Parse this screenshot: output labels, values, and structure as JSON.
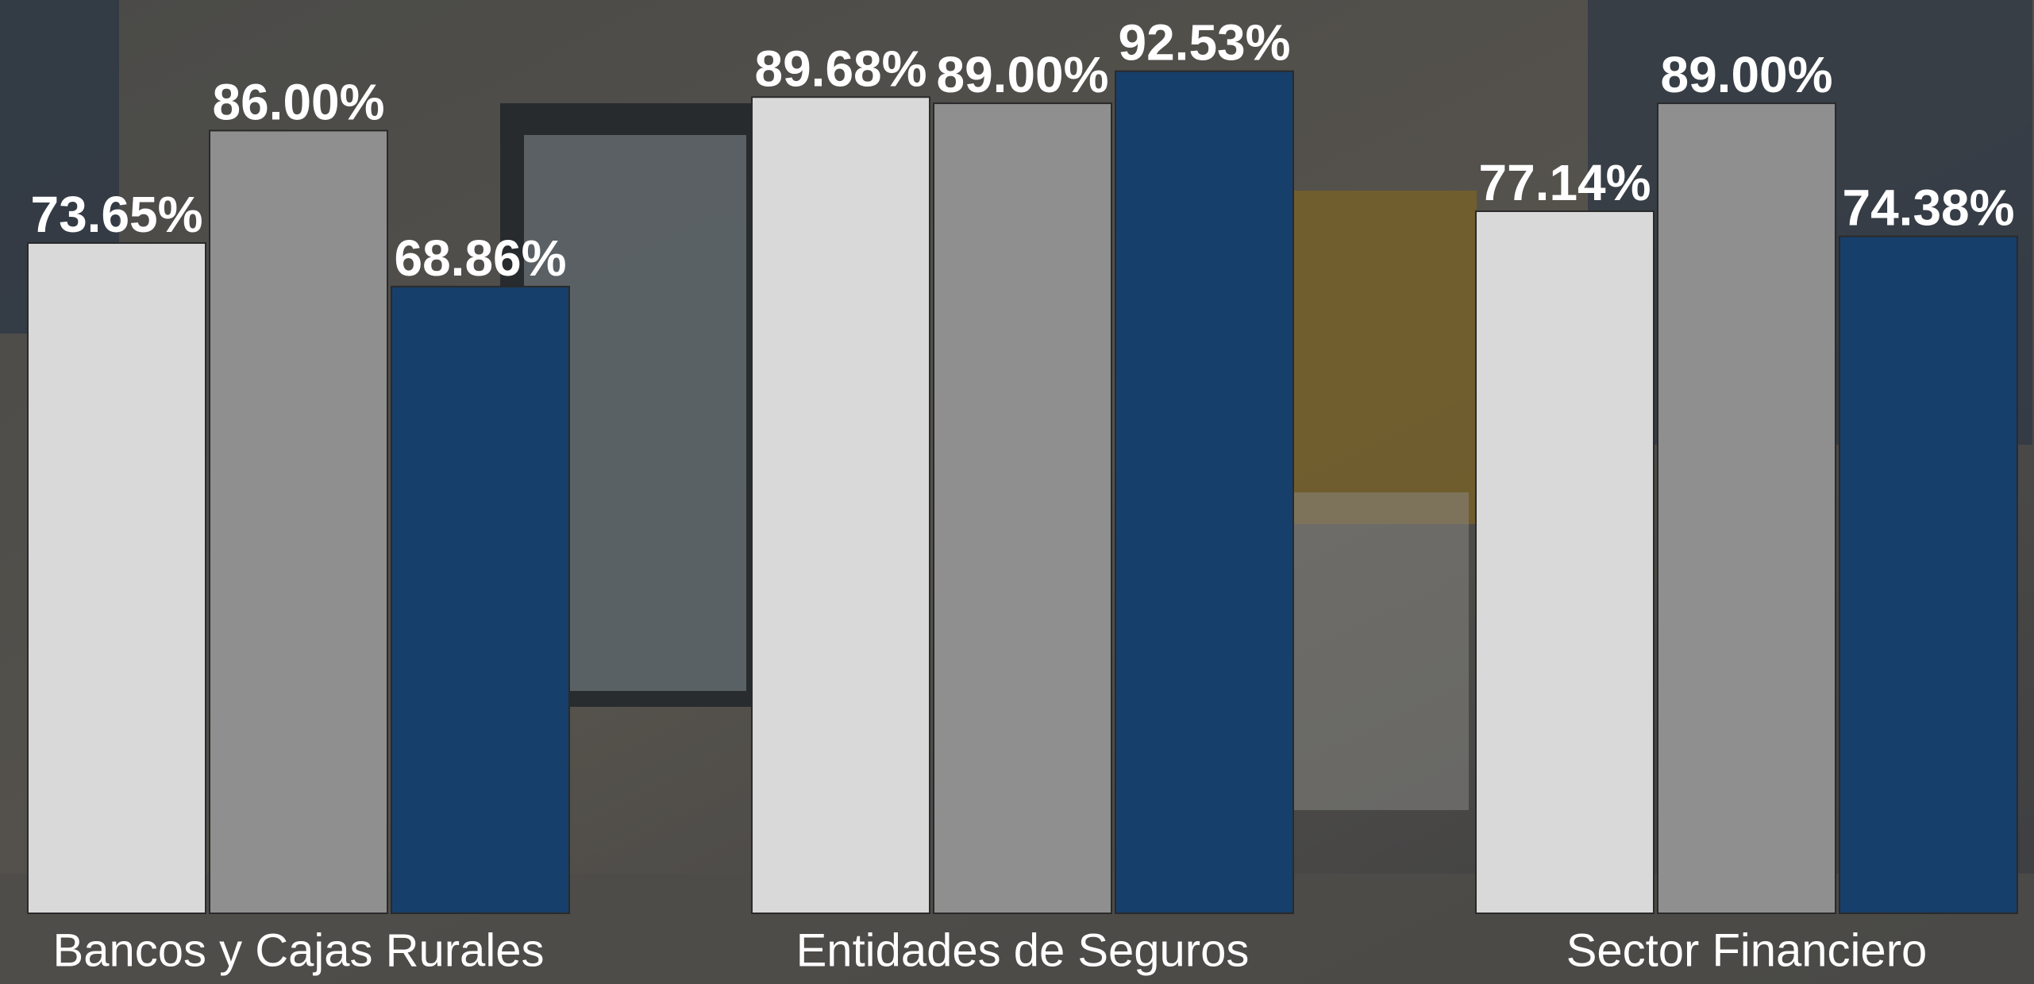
{
  "chart_data": {
    "type": "bar",
    "categories": [
      "Bancos y Cajas Rurales",
      "Entidades de Seguros",
      "Sector Financiero"
    ],
    "series": [
      {
        "color": "#d9d9d9",
        "values": [
          73.65,
          89.68,
          77.14
        ],
        "value_labels": [
          "73.65%",
          "89.68%",
          "77.14%"
        ]
      },
      {
        "color": "#8f8f8f",
        "values": [
          86.0,
          89.0,
          89.0
        ],
        "value_labels": [
          "86.00%",
          "89.00%",
          "89.00%"
        ]
      },
      {
        "color": "#173f6b",
        "values": [
          68.86,
          92.53,
          74.38
        ],
        "value_labels": [
          "68.86%",
          "92.53%",
          "74.38%"
        ]
      }
    ],
    "ylim": [
      0,
      100
    ]
  }
}
